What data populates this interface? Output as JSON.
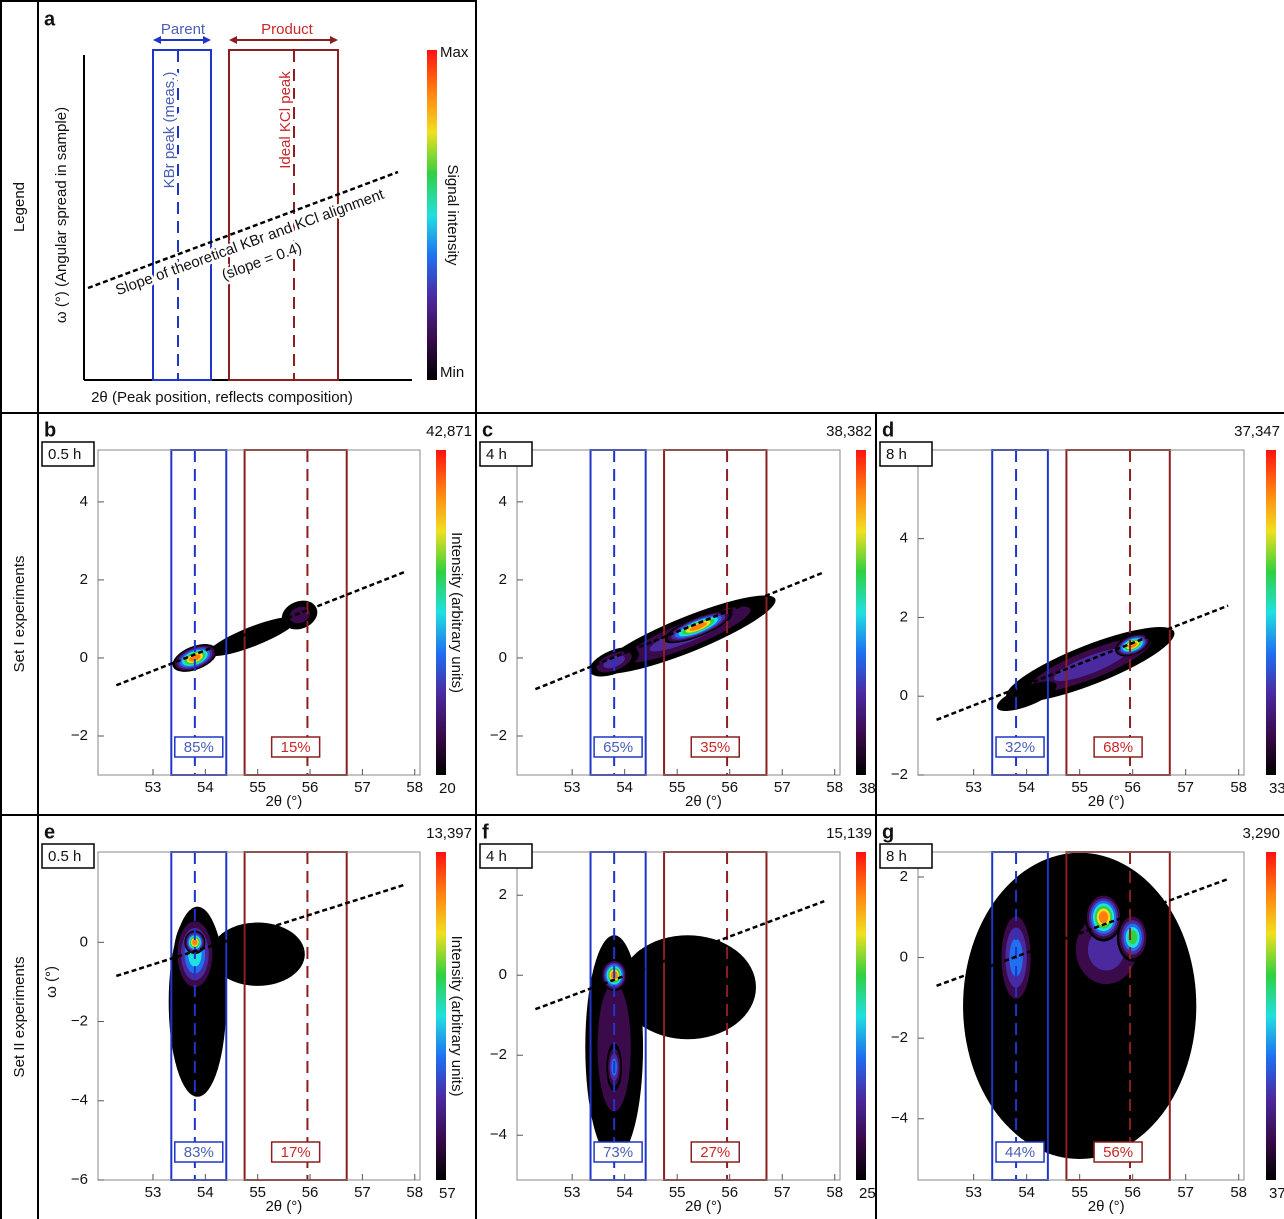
{
  "row_labels": [
    "Legend",
    "Set I experiments",
    "Set II experiments"
  ],
  "colors": {
    "parent": "#1f35c8",
    "product": "#8b1f1f",
    "parent_text": "#4a5fb5",
    "product_text": "#c8282a"
  },
  "colormap": [
    "#000000",
    "#3a0a4a",
    "#4b2aa0",
    "#1f6ff0",
    "#20e0e0",
    "#30d040",
    "#f0e020",
    "#ff8010",
    "#ff1010"
  ],
  "legend": {
    "letter": "a",
    "parent": "Parent",
    "product": "Product",
    "parent_peak_label": "KBr peak (meas.)",
    "product_peak_label": "Ideal KCl peak",
    "slope_label": "Slope of theoretical KBr and KCl alignment",
    "slope_value_label": "(slope = 0.4)",
    "ylabel": "ω (°) (Angular spread in sample)",
    "xlabel": "2θ (Peak position, reflects composition)",
    "colorbar_max": "Max",
    "colorbar_min": "Min",
    "colorbar_label": "Signal intensity"
  },
  "chart_data": [
    {
      "type": "contour",
      "panel": "b",
      "time": "0.5 h",
      "max_count": {
        "value": 42871,
        "label": "42,871"
      },
      "colorbar_min": 20,
      "colorbar_label": "Intensity (arbitrary units)",
      "xlabel": "2θ (°)",
      "xlim": [
        51.95,
        58.1
      ],
      "xticks": [
        53,
        54,
        55,
        56,
        57,
        58
      ],
      "ylim": [
        -3,
        5.33
      ],
      "yticks": [
        {
          "value": -2,
          "label": "−2"
        },
        0,
        2,
        4
      ],
      "parent_peak": 53.8,
      "product_peak": 55.95,
      "parent_box": [
        53.35,
        54.4
      ],
      "product_box": [
        54.75,
        56.7
      ],
      "fractions": [
        85,
        15
      ],
      "fraction_labels": [
        "85%",
        "15%"
      ],
      "alignment_line": {
        "x": [
          52.3,
          57.8
        ],
        "y": [
          -0.7,
          2.2
        ]
      },
      "regions": [
        [
          54.9,
          0.55,
          0.9,
          0.25,
          0.12,
          1
        ],
        [
          55.8,
          1.1,
          0.35,
          0.35,
          0.2,
          1
        ],
        [
          53.8,
          0,
          0.45,
          0.3,
          1,
          1
        ]
      ]
    },
    {
      "type": "contour",
      "panel": "c",
      "time": "4 h",
      "max_count": {
        "value": 38382,
        "label": "38,382"
      },
      "colorbar_min": 38,
      "xlabel": "2θ (°)",
      "xlim": [
        51.95,
        58.1
      ],
      "xticks": [
        53,
        54,
        55,
        56,
        57,
        58
      ],
      "ylim": [
        -3,
        5.33
      ],
      "yticks": [
        {
          "value": -2,
          "label": "−2"
        },
        0,
        2,
        4
      ],
      "parent_peak": 53.8,
      "product_peak": 55.95,
      "parent_box": [
        53.35,
        54.4
      ],
      "product_box": [
        54.75,
        56.7
      ],
      "fractions": [
        65,
        35
      ],
      "fraction_labels": [
        "65%",
        "35%"
      ],
      "alignment_line": {
        "x": [
          52.3,
          57.8
        ],
        "y": [
          -0.8,
          2.2
        ]
      },
      "regions": [
        [
          55.2,
          0.6,
          1.8,
          0.45,
          0.3,
          1
        ],
        [
          53.8,
          -0.1,
          0.5,
          0.3,
          0.35,
          1
        ],
        [
          55.4,
          0.8,
          0.7,
          0.25,
          1,
          1
        ]
      ]
    },
    {
      "type": "contour",
      "panel": "d",
      "time": "8 h",
      "max_count": {
        "value": 37347,
        "label": "37,347"
      },
      "colorbar_min": 33,
      "xlabel": "2θ (°)",
      "xlim": [
        51.95,
        58.1
      ],
      "xticks": [
        53,
        54,
        55,
        56,
        57,
        58
      ],
      "ylim": [
        -2,
        6.25
      ],
      "yticks": [
        {
          "value": -2,
          "label": "−2"
        },
        0,
        2,
        4
      ],
      "parent_peak": 53.8,
      "product_peak": 55.95,
      "parent_box": [
        53.35,
        54.4
      ],
      "product_box": [
        54.75,
        56.7
      ],
      "fractions": [
        32,
        68
      ],
      "fraction_labels": [
        "32%",
        "68%"
      ],
      "alignment_line": {
        "x": [
          52.3,
          57.8
        ],
        "y": [
          -0.6,
          2.3
        ]
      },
      "regions": [
        [
          55.2,
          0.8,
          1.7,
          0.5,
          0.35,
          1
        ],
        [
          54.0,
          0,
          0.6,
          0.25,
          0.1,
          1
        ],
        [
          56.0,
          1.3,
          0.35,
          0.25,
          1,
          1
        ]
      ]
    },
    {
      "type": "contour",
      "panel": "e",
      "time": "0.5 h",
      "max_count": {
        "value": 13397,
        "label": "13,397"
      },
      "colorbar_min": 57,
      "colorbar_label": "Intensity (arbitrary units)",
      "xlabel": "2θ (°)",
      "ylabel": "ω (°)",
      "xlim": [
        51.95,
        58.1
      ],
      "xticks": [
        53,
        54,
        55,
        56,
        57,
        58
      ],
      "ylim": [
        -6,
        2.28
      ],
      "yticks": [
        {
          "value": -6,
          "label": "−6"
        },
        {
          "value": -4,
          "label": "−4"
        },
        {
          "value": -2,
          "label": "−2"
        },
        0
      ],
      "parent_peak": 53.8,
      "product_peak": 55.95,
      "parent_box": [
        53.35,
        54.4
      ],
      "product_box": [
        54.75,
        56.7
      ],
      "fractions": [
        83,
        17
      ],
      "fraction_labels": [
        "83%",
        "17%"
      ],
      "alignment_line": {
        "x": [
          52.3,
          57.8
        ],
        "y": [
          -0.85,
          1.45
        ]
      },
      "regions": [
        [
          55.0,
          -0.3,
          0.9,
          0.8,
          0.05,
          0
        ],
        [
          53.85,
          -1.5,
          0.55,
          2.4,
          0.1,
          0
        ],
        [
          53.8,
          -0.3,
          0.4,
          1.0,
          0.55,
          0
        ],
        [
          53.8,
          0,
          0.2,
          0.3,
          1,
          0
        ]
      ]
    },
    {
      "type": "contour",
      "panel": "f",
      "time": "4 h",
      "max_count": {
        "value": 15139,
        "label": "15,139"
      },
      "colorbar_min": 25,
      "xlabel": "2θ (°)",
      "xlim": [
        51.95,
        58.1
      ],
      "xticks": [
        53,
        54,
        55,
        56,
        57,
        58
      ],
      "ylim": [
        -5.12,
        3.08
      ],
      "yticks": [
        {
          "value": -4,
          "label": "−4"
        },
        {
          "value": -2,
          "label": "−2"
        },
        0,
        2
      ],
      "parent_peak": 53.8,
      "product_peak": 55.95,
      "parent_box": [
        53.35,
        54.4
      ],
      "product_box": [
        54.75,
        56.7
      ],
      "fractions": [
        73,
        27
      ],
      "fraction_labels": [
        "73%",
        "27%"
      ],
      "alignment_line": {
        "x": [
          52.3,
          57.8
        ],
        "y": [
          -0.85,
          1.85
        ]
      },
      "regions": [
        [
          55.2,
          -0.3,
          1.3,
          1.3,
          0.08,
          0
        ],
        [
          53.8,
          -1.8,
          0.55,
          2.8,
          0.2,
          0
        ],
        [
          53.8,
          -2.3,
          0.15,
          0.6,
          0.45,
          0
        ],
        [
          53.8,
          0,
          0.25,
          0.4,
          1,
          0
        ]
      ]
    },
    {
      "type": "contour",
      "panel": "g",
      "time": "8 h",
      "max_count": {
        "value": 3290,
        "label": "3,290"
      },
      "colorbar_min": 37,
      "xlabel": "2θ (°)",
      "xlim": [
        51.95,
        58.1
      ],
      "xticks": [
        53,
        54,
        55,
        56,
        57,
        58
      ],
      "ylim": [
        -5.52,
        2.62
      ],
      "yticks": [
        {
          "value": -4,
          "label": "−4"
        },
        {
          "value": -2,
          "label": "−2"
        },
        0,
        2
      ],
      "parent_peak": 53.8,
      "product_peak": 55.95,
      "parent_box": [
        53.35,
        54.4
      ],
      "product_box": [
        54.75,
        56.7
      ],
      "fractions": [
        44,
        56
      ],
      "fraction_labels": [
        "44%",
        "56%"
      ],
      "alignment_line": {
        "x": [
          52.3,
          57.8
        ],
        "y": [
          -0.7,
          1.95
        ]
      },
      "regions": [
        [
          55.0,
          -1.2,
          2.2,
          3.8,
          0.12,
          0
        ],
        [
          53.8,
          0,
          0.35,
          1.3,
          0.45,
          0
        ],
        [
          55.5,
          0.2,
          0.8,
          1.2,
          0.35,
          0
        ],
        [
          56.0,
          0.5,
          0.3,
          0.6,
          0.75,
          0
        ],
        [
          55.45,
          1.0,
          0.35,
          0.6,
          0.9,
          0
        ]
      ]
    }
  ]
}
